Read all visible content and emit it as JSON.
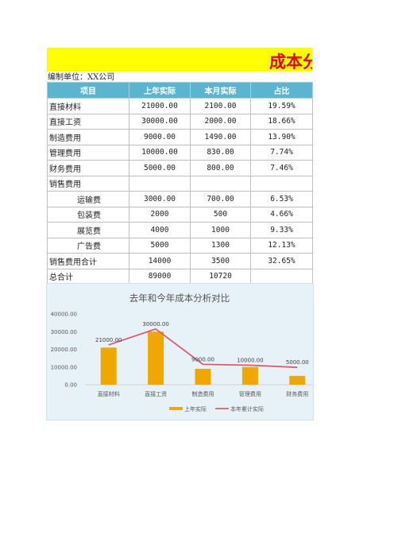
{
  "document": {
    "title": "成本分析表",
    "unit_label": "编制单位：XX公司"
  },
  "table": {
    "headers": [
      "项目",
      "上年实际",
      "本月实际",
      "占比"
    ],
    "rows": [
      {
        "name": "直接材料",
        "sub": false,
        "prev": "21000.00",
        "month": "2100.00",
        "ratio": "19.59%"
      },
      {
        "name": "直接工资",
        "sub": false,
        "prev": "30000.00",
        "month": "2000.00",
        "ratio": "18.66%"
      },
      {
        "name": "制造费用",
        "sub": false,
        "prev": "9000.00",
        "month": "1490.00",
        "ratio": "13.90%"
      },
      {
        "name": "管理费用",
        "sub": false,
        "prev": "10000.00",
        "month": "830.00",
        "ratio": "7.74%"
      },
      {
        "name": "财务费用",
        "sub": false,
        "prev": "5000.00",
        "month": "800.00",
        "ratio": "7.46%"
      },
      {
        "name": "销售费用",
        "sub": false,
        "prev": "",
        "month": "",
        "ratio": ""
      },
      {
        "name": "运输费",
        "sub": true,
        "prev": "3000.00",
        "month": "700.00",
        "ratio": "6.53%"
      },
      {
        "name": "包装费",
        "sub": true,
        "prev": "2000",
        "month": "500",
        "ratio": "4.66%"
      },
      {
        "name": "展览费",
        "sub": true,
        "prev": "4000",
        "month": "1000",
        "ratio": "9.33%"
      },
      {
        "name": "广告费",
        "sub": true,
        "prev": "5000",
        "month": "1300",
        "ratio": "12.13%"
      },
      {
        "name": "销售费用合计",
        "sub": false,
        "prev": "14000",
        "month": "3500",
        "ratio": "32.65%"
      },
      {
        "name": "总合计",
        "sub": false,
        "prev": "89000",
        "month": "10720",
        "ratio": ""
      }
    ]
  },
  "chart_data": {
    "type": "bar",
    "title": "去年和今年成本分析对比",
    "categories": [
      "直接材料",
      "直接工资",
      "制造费用",
      "管理费用",
      "财务费用"
    ],
    "series": [
      {
        "name": "上年实际",
        "type": "bar",
        "color": "#f0a800",
        "values": [
          21000,
          30000,
          9000,
          10000,
          5000
        ]
      },
      {
        "name": "本年累计实际",
        "type": "line",
        "color": "#dd5b6e",
        "values": [
          22500,
          31500,
          11500,
          11000,
          9800
        ]
      }
    ],
    "data_labels": [
      "21000.00",
      "30000.00",
      "9000.00",
      "10000.00",
      "5000.00"
    ],
    "y_ticks": [
      "0.00",
      "10000.00",
      "20000.00",
      "30000.00",
      "40000.00"
    ],
    "ylim": [
      0,
      40000
    ],
    "grid": false,
    "legend_position": "bottom"
  }
}
